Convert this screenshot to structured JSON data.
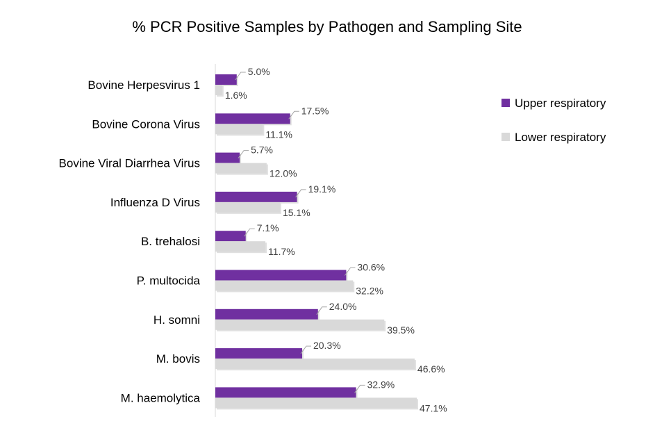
{
  "chart_data": {
    "type": "bar",
    "orientation": "horizontal",
    "title": "% PCR Positive Samples by Pathogen and Sampling Site",
    "categories": [
      "Bovine Herpesvirus 1",
      "Bovine Corona Virus",
      "Bovine Viral Diarrhea Virus",
      "Influenza D Virus",
      "B. trehalosi",
      "P. multocida",
      "H. somni",
      "M. bovis",
      "M. haemolytica"
    ],
    "series": [
      {
        "name": "Upper respiratory",
        "color": "#7030A0",
        "values": [
          5.0,
          17.5,
          5.7,
          19.1,
          7.1,
          30.6,
          24.0,
          20.3,
          32.9
        ],
        "labels": [
          "5.0%",
          "17.5%",
          "5.7%",
          "19.1%",
          "7.1%",
          "30.6%",
          "24.0%",
          "20.3%",
          "32.9%"
        ]
      },
      {
        "name": "Lower respiratory",
        "color": "#D9D9D9",
        "values": [
          1.6,
          11.1,
          12.0,
          15.1,
          11.7,
          32.2,
          39.5,
          46.6,
          47.1
        ],
        "labels": [
          "1.6%",
          "11.1%",
          "12.0%",
          "15.1%",
          "11.7%",
          "32.2%",
          "39.5%",
          "46.6%",
          "47.1%"
        ]
      }
    ],
    "xlim": [
      0,
      47.1
    ],
    "xlabel": "",
    "ylabel": "",
    "grid": false,
    "legend_position": "right"
  }
}
